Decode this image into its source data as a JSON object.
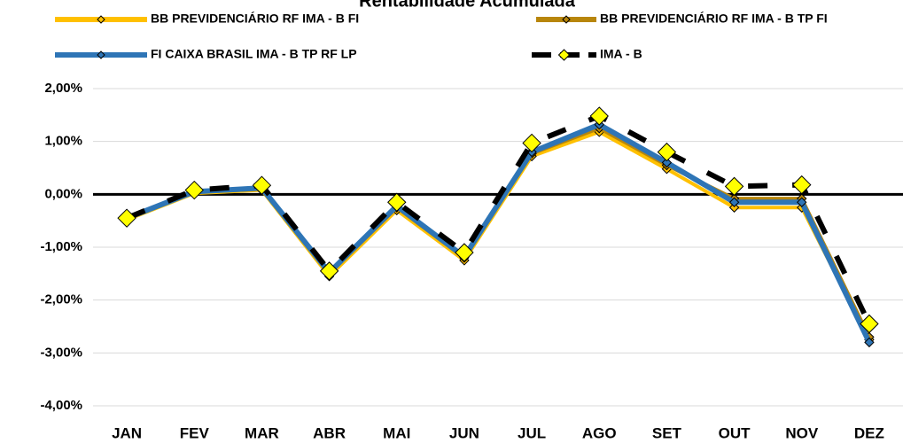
{
  "chart_data": {
    "type": "line",
    "title": "Rentabilidade Acumulada",
    "categories": [
      "JAN",
      "FEV",
      "MAR",
      "ABR",
      "MAI",
      "JUN",
      "JUL",
      "AGO",
      "SET",
      "OUT",
      "NOV",
      "DEZ"
    ],
    "series": [
      {
        "name": "BB PREVIDENCIÁRIO RF IMA - B FI",
        "color": "#FFC000",
        "marker_fill": "#FFC000",
        "values": [
          -0.48,
          0.02,
          0.08,
          -1.55,
          -0.3,
          -1.25,
          0.72,
          1.18,
          0.48,
          -0.25,
          -0.25,
          -2.75
        ]
      },
      {
        "name": "BB PREVIDENCIÁRIO RF IMA - B TP FI",
        "color": "#B8860B",
        "marker_fill": "#B8860B",
        "values": [
          -0.46,
          0.04,
          0.1,
          -1.5,
          -0.25,
          -1.2,
          0.77,
          1.25,
          0.55,
          -0.08,
          -0.08,
          -2.7
        ]
      },
      {
        "name": "FI CAIXA BRASIL IMA - B TP RF LP",
        "color": "#2E75B6",
        "marker_fill": "#2E75B6",
        "values": [
          -0.45,
          0.05,
          0.12,
          -1.48,
          -0.22,
          -1.18,
          0.8,
          1.32,
          0.6,
          -0.15,
          -0.15,
          -2.8
        ]
      },
      {
        "name": "IMA - B",
        "color": "#000000",
        "marker_fill": "#FFFF00",
        "dashed": true,
        "values": [
          -0.45,
          0.08,
          0.17,
          -1.45,
          -0.15,
          -1.1,
          0.97,
          1.48,
          0.8,
          0.15,
          0.18,
          -2.45
        ]
      }
    ],
    "ylim": [
      -4,
      2
    ],
    "yticks": [
      {
        "value": -4,
        "label": "-4,00%"
      },
      {
        "value": -3,
        "label": "-3,00%"
      },
      {
        "value": -2,
        "label": "-2,00%"
      },
      {
        "value": -1,
        "label": "-1,00%"
      },
      {
        "value": 0,
        "label": "0,00%"
      },
      {
        "value": 1,
        "label": "1,00%"
      },
      {
        "value": 2,
        "label": "2,00%"
      }
    ],
    "grid": true
  }
}
